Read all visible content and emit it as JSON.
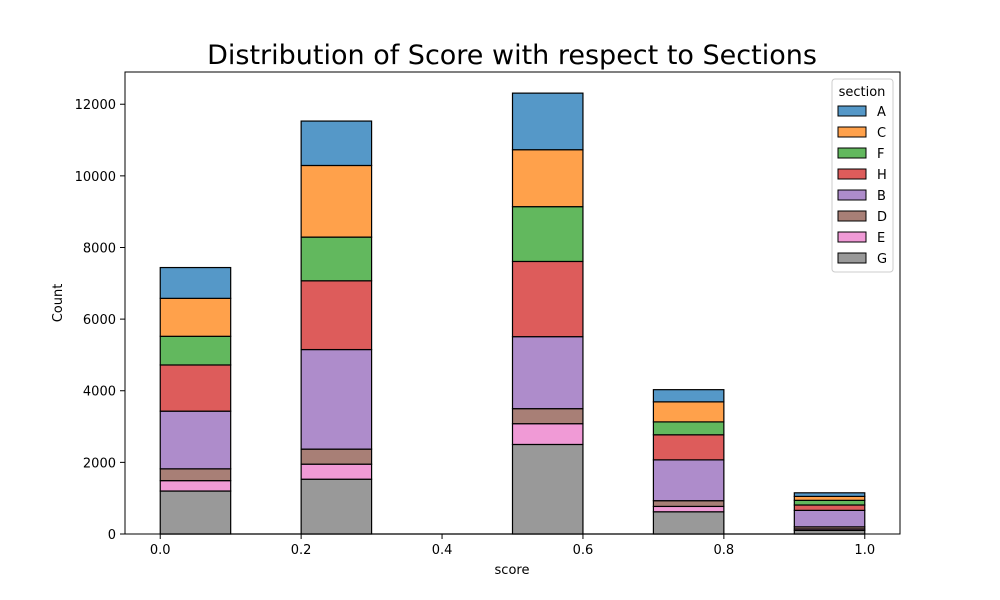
{
  "chart_data": {
    "type": "bar",
    "stacked": true,
    "title": "Distribution of Score with respect to Sections",
    "xlabel": "score",
    "ylabel": "Count",
    "xlim": [
      -0.05,
      1.05
    ],
    "ylim": [
      0,
      12900
    ],
    "xticks": [
      0.0,
      0.2,
      0.4,
      0.6,
      0.8,
      1.0
    ],
    "xtick_labels": [
      "0.0",
      "0.2",
      "0.4",
      "0.6",
      "0.8",
      "1.0"
    ],
    "yticks": [
      0,
      2000,
      4000,
      6000,
      8000,
      10000,
      12000
    ],
    "ytick_labels": [
      "0",
      "2000",
      "4000",
      "6000",
      "8000",
      "10000",
      "12000"
    ],
    "bins": [
      [
        0.0,
        0.1
      ],
      [
        0.2,
        0.3
      ],
      [
        0.5,
        0.6
      ],
      [
        0.7,
        0.8
      ],
      [
        0.9,
        1.0
      ]
    ],
    "legend": {
      "title": "section",
      "position": "top-right"
    },
    "series": [
      {
        "name": "G",
        "color": "#999999",
        "values": [
          1200,
          1530,
          2500,
          620,
          100
        ]
      },
      {
        "name": "E",
        "color": "#f09ad6",
        "values": [
          290,
          420,
          580,
          150,
          40
        ]
      },
      {
        "name": "D",
        "color": "#a87f76",
        "values": [
          330,
          420,
          420,
          160,
          60
        ]
      },
      {
        "name": "B",
        "color": "#ae8ccb",
        "values": [
          1610,
          2780,
          2010,
          1140,
          460
        ]
      },
      {
        "name": "H",
        "color": "#dd5c5b",
        "values": [
          1290,
          1920,
          2100,
          700,
          150
        ]
      },
      {
        "name": "F",
        "color": "#62b85e",
        "values": [
          800,
          1220,
          1530,
          360,
          130
        ]
      },
      {
        "name": "C",
        "color": "#ffa14b",
        "values": [
          1060,
          2000,
          1590,
          560,
          110
        ]
      },
      {
        "name": "A",
        "color": "#5598c8",
        "values": [
          860,
          1240,
          1580,
          340,
          100
        ]
      }
    ],
    "legend_order": [
      "A",
      "C",
      "F",
      "H",
      "B",
      "D",
      "E",
      "G"
    ]
  }
}
